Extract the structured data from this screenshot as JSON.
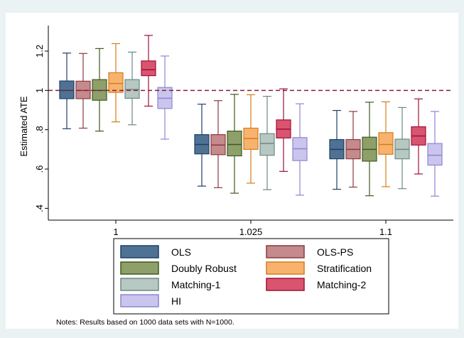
{
  "chart_data": {
    "type": "boxplot",
    "title": "",
    "ylabel": "Estimated ATE",
    "xlabel": "",
    "ylim": [
      0.34,
      1.33
    ],
    "yticks": [
      0.4,
      0.6,
      0.8,
      1.0,
      1.2
    ],
    "ytick_labels": [
      ".4",
      ".6",
      ".8",
      "1",
      "1.2"
    ],
    "reference_line": {
      "y": 1.0,
      "style": "dashed",
      "color": "#8b1a3a"
    },
    "grid": false,
    "legend_placement": "bottom",
    "categories": [
      "1",
      "1.025",
      "1.1"
    ],
    "series": [
      {
        "name": "OLS",
        "fill": "#4f7294",
        "stroke": "#1f3f63",
        "boxes": [
          {
            "min": 0.805,
            "q1": 0.958,
            "median": 1.0,
            "q3": 1.048,
            "max": 1.19
          },
          {
            "min": 0.513,
            "q1": 0.677,
            "median": 0.725,
            "q3": 0.775,
            "max": 0.93
          },
          {
            "min": 0.497,
            "q1": 0.652,
            "median": 0.7,
            "q3": 0.75,
            "max": 0.898
          }
        ]
      },
      {
        "name": "OLS-PS",
        "fill": "#c48a8c",
        "stroke": "#8a3a3f",
        "boxes": [
          {
            "min": 0.808,
            "q1": 0.958,
            "median": 1.0,
            "q3": 1.047,
            "max": 1.188
          },
          {
            "min": 0.505,
            "q1": 0.673,
            "median": 0.722,
            "q3": 0.775,
            "max": 0.948
          },
          {
            "min": 0.508,
            "q1": 0.652,
            "median": 0.7,
            "q3": 0.75,
            "max": 0.893
          }
        ]
      },
      {
        "name": "Doubly Robust",
        "fill": "#8e9f6a",
        "stroke": "#3c5a1f",
        "boxes": [
          {
            "min": 0.793,
            "q1": 0.95,
            "median": 1.0,
            "q3": 1.055,
            "max": 1.213
          },
          {
            "min": 0.477,
            "q1": 0.667,
            "median": 0.725,
            "q3": 0.793,
            "max": 0.98
          },
          {
            "min": 0.464,
            "q1": 0.64,
            "median": 0.7,
            "q3": 0.762,
            "max": 0.94
          }
        ]
      },
      {
        "name": "Stratification",
        "fill": "#f7b36e",
        "stroke": "#d57c19",
        "boxes": [
          {
            "min": 0.84,
            "q1": 0.99,
            "median": 1.035,
            "q3": 1.09,
            "max": 1.238
          },
          {
            "min": 0.528,
            "q1": 0.7,
            "median": 0.755,
            "q3": 0.808,
            "max": 0.978
          },
          {
            "min": 0.51,
            "q1": 0.675,
            "median": 0.725,
            "q3": 0.785,
            "max": 0.942
          }
        ]
      },
      {
        "name": "Matching-1",
        "fill": "#b7c7c2",
        "stroke": "#6b8a83",
        "boxes": [
          {
            "min": 0.825,
            "q1": 0.96,
            "median": 1.005,
            "q3": 1.055,
            "max": 1.195
          },
          {
            "min": 0.495,
            "q1": 0.67,
            "median": 0.73,
            "q3": 0.78,
            "max": 0.97
          },
          {
            "min": 0.5,
            "q1": 0.652,
            "median": 0.7,
            "q3": 0.752,
            "max": 0.913
          }
        ]
      },
      {
        "name": "Matching-2",
        "fill": "#d9546f",
        "stroke": "#a01038",
        "boxes": [
          {
            "min": 0.92,
            "q1": 1.075,
            "median": 1.105,
            "q3": 1.15,
            "max": 1.28
          },
          {
            "min": 0.588,
            "q1": 0.758,
            "median": 0.803,
            "q3": 0.85,
            "max": 1.008
          },
          {
            "min": 0.575,
            "q1": 0.722,
            "median": 0.768,
            "q3": 0.815,
            "max": 0.957
          }
        ]
      },
      {
        "name": "HI",
        "fill": "#c9c5ec",
        "stroke": "#8c86d2",
        "boxes": [
          {
            "min": 0.752,
            "q1": 0.908,
            "median": 0.96,
            "q3": 1.015,
            "max": 1.175
          },
          {
            "min": 0.467,
            "q1": 0.643,
            "median": 0.703,
            "q3": 0.76,
            "max": 0.932
          },
          {
            "min": 0.462,
            "q1": 0.62,
            "median": 0.67,
            "q3": 0.73,
            "max": 0.893
          }
        ]
      }
    ],
    "note": "Notes: Results based on 1000 data sets with N=1000."
  }
}
